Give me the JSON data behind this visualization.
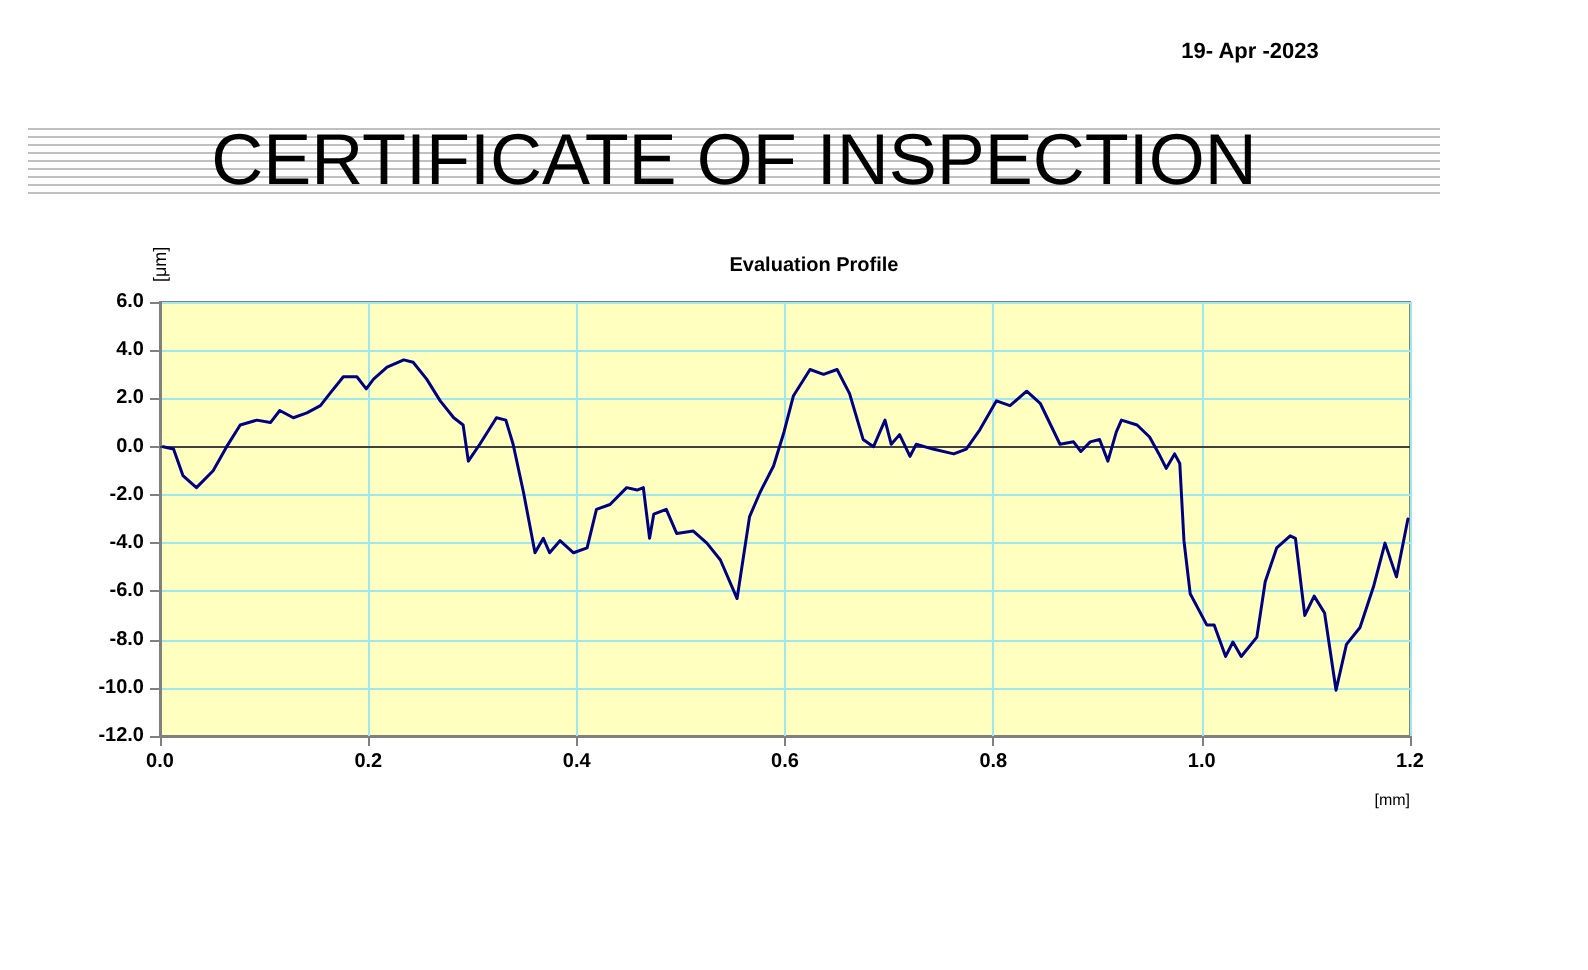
{
  "chart_data": {
    "type": "line",
    "title": "CERTIFICATE OF INSPECTION",
    "subtitle": "Evaluation Profile",
    "xlabel": "[mm]",
    "ylabel": "[μm]",
    "annotations": [
      "19- Apr -2023"
    ],
    "x": [
      0.003,
      0.013,
      0.022,
      0.035,
      0.051,
      0.064,
      0.077,
      0.093,
      0.106,
      0.115,
      0.128,
      0.141,
      0.154,
      0.163,
      0.176,
      0.189,
      0.198,
      0.205,
      0.218,
      0.234,
      0.243,
      0.256,
      0.269,
      0.282,
      0.291,
      0.296,
      0.307,
      0.323,
      0.332,
      0.339,
      0.349,
      0.36,
      0.368,
      0.374,
      0.384,
      0.397,
      0.41,
      0.419,
      0.432,
      0.448,
      0.458,
      0.464,
      0.47,
      0.474,
      0.486,
      0.496,
      0.512,
      0.525,
      0.538,
      0.554,
      0.566,
      0.576,
      0.589,
      0.599,
      0.608,
      0.624,
      0.637,
      0.65,
      0.662,
      0.675,
      0.685,
      0.696,
      0.702,
      0.71,
      0.72,
      0.726,
      0.742,
      0.762,
      0.774,
      0.787,
      0.803,
      0.816,
      0.832,
      0.845,
      0.864,
      0.877,
      0.884,
      0.893,
      0.902,
      0.91,
      0.918,
      0.923,
      0.938,
      0.95,
      0.959,
      0.966,
      0.974,
      0.979,
      0.983,
      0.989,
      1.005,
      1.012,
      1.023,
      1.03,
      1.038,
      1.053,
      1.061,
      1.072,
      1.085,
      1.09,
      1.099,
      1.108,
      1.118,
      1.129,
      1.139,
      1.152,
      1.165,
      1.176,
      1.187,
      1.198
    ],
    "series": [
      {
        "color": "#000080",
        "values": [
          0.0,
          -0.1,
          -1.2,
          -1.7,
          -1.0,
          0.0,
          0.9,
          1.1,
          1.0,
          1.5,
          1.2,
          1.4,
          1.7,
          2.2,
          2.9,
          2.9,
          2.4,
          2.8,
          3.3,
          3.6,
          3.5,
          2.8,
          1.9,
          1.2,
          0.9,
          -0.6,
          0.1,
          1.2,
          1.1,
          0.1,
          -1.9,
          -4.4,
          -3.8,
          -4.4,
          -3.9,
          -4.4,
          -4.2,
          -2.6,
          -2.4,
          -1.7,
          -1.8,
          -1.7,
          -3.8,
          -2.8,
          -2.6,
          -3.6,
          -3.5,
          -4.0,
          -4.7,
          -6.3,
          -2.9,
          -1.9,
          -0.8,
          0.6,
          2.1,
          3.2,
          3.0,
          3.2,
          2.2,
          0.3,
          0.0,
          1.1,
          0.1,
          0.5,
          -0.4,
          0.1,
          -0.1,
          -0.3,
          -0.1,
          0.7,
          1.9,
          1.7,
          2.3,
          1.8,
          0.1,
          0.2,
          -0.2,
          0.2,
          0.3,
          -0.6,
          0.6,
          1.1,
          0.9,
          0.4,
          -0.3,
          -0.9,
          -0.3,
          -0.7,
          -3.9,
          -6.1,
          -7.4,
          -7.4,
          -8.7,
          -8.1,
          -8.7,
          -7.9,
          -5.6,
          -4.2,
          -3.7,
          -3.8,
          -7.0,
          -6.2,
          -6.9,
          -10.1,
          -8.2,
          -7.5,
          -5.8,
          -4.0,
          -5.4,
          -3.0
        ]
      }
    ],
    "xlim": [
      0,
      1.2
    ],
    "xticks": [
      {
        "value": 0,
        "label": "0.0"
      },
      {
        "value": 0.2,
        "label": "0.2"
      },
      {
        "value": 0.4,
        "label": "0.4"
      },
      {
        "value": 0.6,
        "label": "0.6"
      },
      {
        "value": 0.8,
        "label": "0.8"
      },
      {
        "value": 1.0,
        "label": "1.0"
      },
      {
        "value": 1.2,
        "label": "1.2"
      }
    ],
    "ylim": [
      -12,
      6
    ],
    "yticks": [
      {
        "value": -12,
        "label": "-12.0"
      },
      {
        "value": -10,
        "label": "-10.0"
      },
      {
        "value": -8,
        "label": "-8.0"
      },
      {
        "value": -6,
        "label": "-6.0"
      },
      {
        "value": -4,
        "label": "-4.0"
      },
      {
        "value": -2,
        "label": "-2.0"
      },
      {
        "value": 0,
        "label": "0.0"
      },
      {
        "value": 2,
        "label": "2.0"
      },
      {
        "value": 4,
        "label": "4.0"
      },
      {
        "value": 6,
        "label": "6.0"
      }
    ],
    "ref_lines": [
      {
        "axis": "y",
        "value": 0,
        "color": "#404040"
      }
    ],
    "grid": true,
    "marker": "none",
    "line_style": "solid"
  }
}
